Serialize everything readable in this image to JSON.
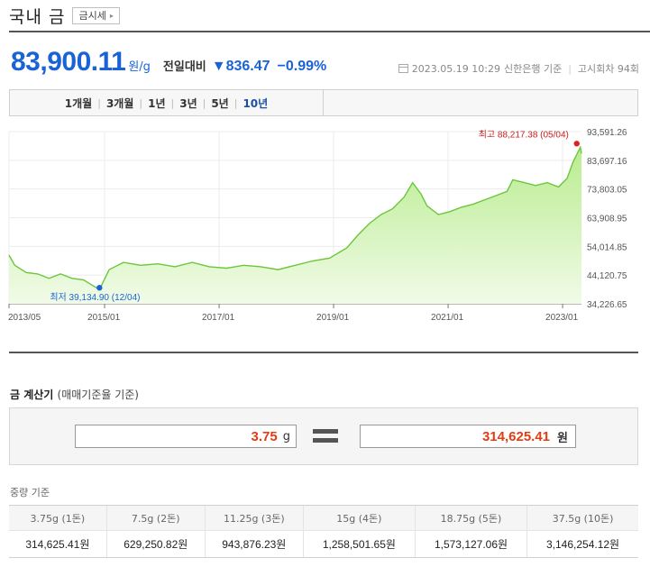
{
  "header": {
    "title": "국내 금",
    "button_label": "금시세",
    "button_arrow": "▸"
  },
  "quote": {
    "price": "83,900.11",
    "unit": "원/g",
    "change_label": "전일대비",
    "change_arrow": "▼",
    "change_value": "836.47",
    "change_pct": "−0.99%",
    "timestamp": "2023.05.19 10:29",
    "source": "신한은행 기준",
    "notice": "고시회차 94회"
  },
  "tabs": [
    {
      "label": "1개월",
      "active": false
    },
    {
      "label": "3개월",
      "active": false
    },
    {
      "label": "1년",
      "active": false
    },
    {
      "label": "3년",
      "active": false
    },
    {
      "label": "5년",
      "active": false
    },
    {
      "label": "10년",
      "active": true
    }
  ],
  "chart_data": {
    "type": "area",
    "x_ticks": [
      "2013/05",
      "2015/01",
      "2017/01",
      "2019/01",
      "2021/01",
      "2023/01"
    ],
    "y_ticks": [
      "93,591.26",
      "83,697.16",
      "73,803.05",
      "63,908.95",
      "54,014.85",
      "44,120.75",
      "34,226.65"
    ],
    "ylim": [
      34226.65,
      93591.26
    ],
    "high_label": "최고 88,217.38 (05/04)",
    "low_label": "최저 39,134.90 (12/04)",
    "high": {
      "t": 9.98,
      "value": 88217.38
    },
    "low": {
      "t": 1.58,
      "value": 39134.9
    },
    "tick_positions_t": [
      0,
      1.67,
      3.67,
      5.67,
      7.67,
      9.67
    ],
    "series": [
      {
        "t": [
          0,
          0.1,
          0.3,
          0.5,
          0.7,
          0.9,
          1.1,
          1.3,
          1.58,
          1.75,
          2.0,
          2.3,
          2.6,
          2.9,
          3.2,
          3.5,
          3.8,
          4.1,
          4.4,
          4.7,
          5.0,
          5.3,
          5.6,
          5.9,
          6.1,
          6.3,
          6.5,
          6.7,
          6.9,
          7.05,
          7.2,
          7.3,
          7.5,
          7.7,
          7.9,
          8.1,
          8.3,
          8.5,
          8.7,
          8.8,
          9.0,
          9.2,
          9.4,
          9.6,
          9.75,
          9.85,
          9.98,
          10.0
        ],
        "values": [
          51000,
          47500,
          45000,
          44500,
          43000,
          44500,
          43000,
          42500,
          39135,
          46000,
          48500,
          47500,
          48000,
          47000,
          48500,
          47000,
          46500,
          47500,
          47000,
          46000,
          47500,
          49000,
          50000,
          53500,
          58000,
          62000,
          65000,
          67000,
          71000,
          76000,
          72000,
          68000,
          65000,
          66000,
          67500,
          68500,
          70000,
          71500,
          73000,
          77000,
          76000,
          75000,
          76000,
          74500,
          77500,
          83000,
          88217,
          86000
        ]
      }
    ]
  },
  "calculator": {
    "title": "금 계산기",
    "subtitle": "(매매기준율 기준)",
    "weight_value": "3.75",
    "weight_unit": "g",
    "result_value": "314,625.41",
    "result_unit": "원"
  },
  "weights": {
    "title": "중량 기준",
    "headers": [
      "3.75g (1돈)",
      "7.5g (2돈)",
      "11.25g (3돈)",
      "15g (4돈)",
      "18.75g (5돈)",
      "37.5g (10돈)"
    ],
    "values": [
      "314,625.41원",
      "629,250.82원",
      "943,876.23원",
      "1,258,501.65원",
      "1,573,127.06원",
      "3,146,254.12원"
    ]
  },
  "colors": {
    "accent_blue": "#1a63d6",
    "accent_red": "#e23c14",
    "chart_line": "#6cc63d",
    "chart_fill_top": "#b9ec8f",
    "chart_fill_bottom": "#f1fbe8"
  }
}
